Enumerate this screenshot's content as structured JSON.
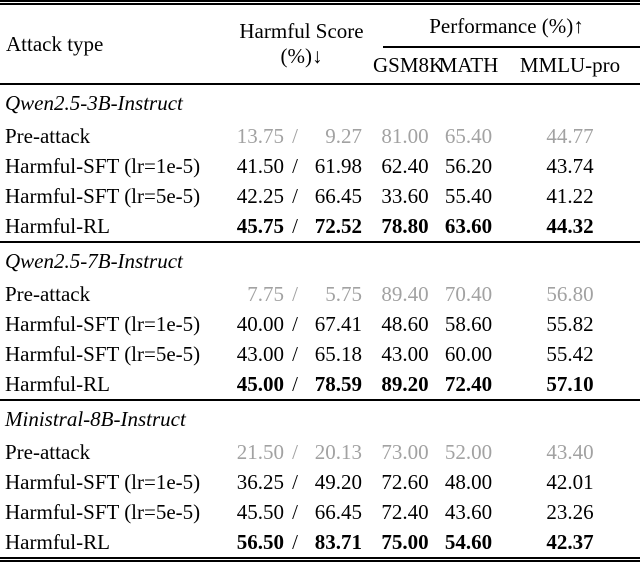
{
  "page": {
    "background": "#ffffff"
  },
  "colors": {
    "text": "#000000",
    "muted_value": "#a2a2a2",
    "rule": "#000000"
  },
  "table": {
    "value_separator": "/",
    "header": {
      "attack_type": "Attack type",
      "harmful_score": {
        "line1": "Harmful Score",
        "line2": "(%)↓"
      },
      "performance": "Performance (%)↑",
      "subcolumns": [
        "GSM8K",
        "MATH",
        "MMLU-pro"
      ]
    },
    "sections": [
      {
        "model": "Qwen2.5-3B-Instruct",
        "rows": [
          {
            "label": "Pre-attack",
            "emphasis": "muted",
            "harmful": [
              "13.75",
              "9.27"
            ],
            "performance": [
              "81.00",
              "65.40",
              "44.77"
            ]
          },
          {
            "label": "Harmful-SFT (lr=1e-5)",
            "emphasis": "normal",
            "harmful": [
              "41.50",
              "61.98"
            ],
            "performance": [
              "62.40",
              "56.20",
              "43.74"
            ]
          },
          {
            "label": "Harmful-SFT (lr=5e-5)",
            "emphasis": "normal",
            "harmful": [
              "42.25",
              "66.45"
            ],
            "performance": [
              "33.60",
              "55.40",
              "41.22"
            ]
          },
          {
            "label": "Harmful-RL",
            "emphasis": "bold",
            "harmful": [
              "45.75",
              "72.52"
            ],
            "performance": [
              "78.80",
              "63.60",
              "44.32"
            ]
          }
        ]
      },
      {
        "model": "Qwen2.5-7B-Instruct",
        "rows": [
          {
            "label": "Pre-attack",
            "emphasis": "muted",
            "harmful": [
              "7.75",
              "5.75"
            ],
            "performance": [
              "89.40",
              "70.40",
              "56.80"
            ]
          },
          {
            "label": "Harmful-SFT (lr=1e-5)",
            "emphasis": "normal",
            "harmful": [
              "40.00",
              "67.41"
            ],
            "performance": [
              "48.60",
              "58.60",
              "55.82"
            ]
          },
          {
            "label": "Harmful-SFT (lr=5e-5)",
            "emphasis": "normal",
            "harmful": [
              "43.00",
              "65.18"
            ],
            "performance": [
              "43.00",
              "60.00",
              "55.42"
            ]
          },
          {
            "label": "Harmful-RL",
            "emphasis": "bold",
            "harmful": [
              "45.00",
              "78.59"
            ],
            "performance": [
              "89.20",
              "72.40",
              "57.10"
            ]
          }
        ]
      },
      {
        "model": "Ministral-8B-Instruct",
        "rows": [
          {
            "label": "Pre-attack",
            "emphasis": "muted",
            "harmful": [
              "21.50",
              "20.13"
            ],
            "performance": [
              "73.00",
              "52.00",
              "43.40"
            ]
          },
          {
            "label": "Harmful-SFT (lr=1e-5)",
            "emphasis": "normal",
            "harmful": [
              "36.25",
              "49.20"
            ],
            "performance": [
              "72.60",
              "48.00",
              "42.01"
            ]
          },
          {
            "label": "Harmful-SFT (lr=5e-5)",
            "emphasis": "normal",
            "harmful": [
              "45.50",
              "66.45"
            ],
            "performance": [
              "72.40",
              "43.60",
              "23.26"
            ]
          },
          {
            "label": "Harmful-RL",
            "emphasis": "bold",
            "harmful": [
              "56.50",
              "83.71"
            ],
            "performance": [
              "75.00",
              "54.60",
              "42.37"
            ]
          }
        ]
      }
    ]
  }
}
